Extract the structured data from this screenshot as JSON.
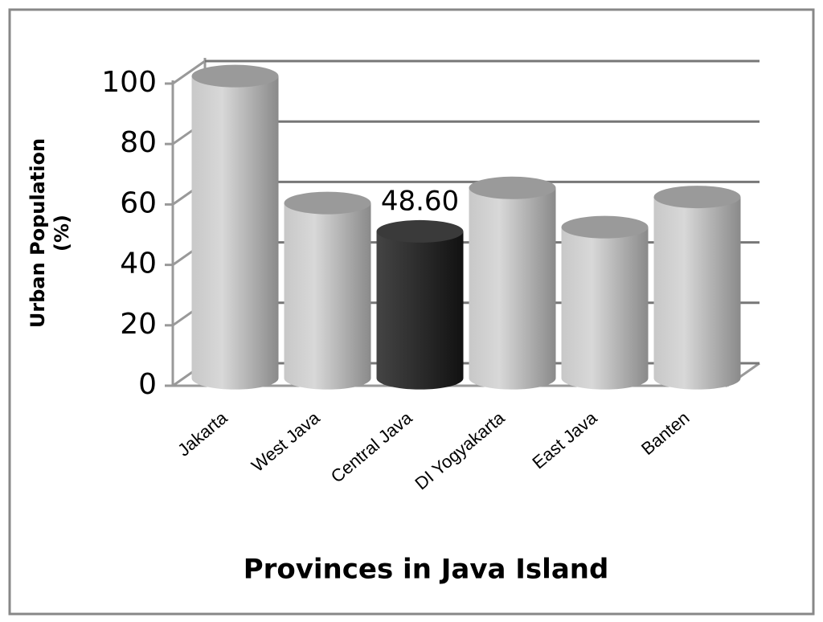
{
  "chart_data": {
    "type": "bar3d",
    "x_label": "Provinces in Java Island",
    "y_label": [
      "Urban Population",
      "(%)"
    ],
    "categories": [
      "Jakarta",
      "West Java",
      "Central Java",
      "DI Yogyakarta",
      "East Java",
      "Banten"
    ],
    "values": [
      100,
      58,
      48.6,
      63,
      50,
      60
    ],
    "value_labels": [
      null,
      null,
      "48.60",
      null,
      null,
      null
    ],
    "colors": [
      "#b8b8b8",
      "#b8b8b8",
      "#2a2a2a",
      "#b8b8b8",
      "#b8b8b8",
      "#b8b8b8"
    ],
    "ylim": [
      0,
      100
    ],
    "yticks": [
      0,
      20,
      40,
      60,
      80,
      100
    ],
    "grid": true
  }
}
